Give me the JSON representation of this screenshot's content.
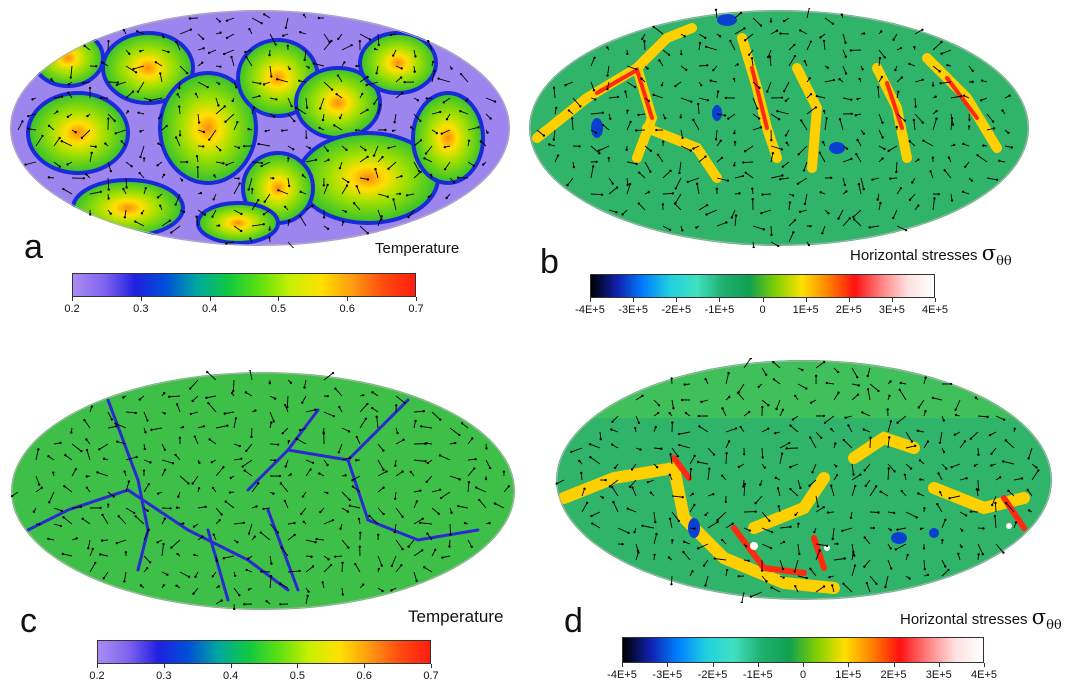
{
  "panels": [
    {
      "letter": "a",
      "quantity": "Temperature",
      "colorbar": {
        "colors": [
          "#a98cf2",
          "#8064f0",
          "#2020e0",
          "#0050d8",
          "#00a8a0",
          "#10c840",
          "#5ee010",
          "#c8f000",
          "#ffe000",
          "#ff9a10",
          "#ff4a10",
          "#ff1e10"
        ],
        "ticks": [
          "0.2",
          "0.3",
          "0.4",
          "0.5",
          "0.6",
          "0.7"
        ]
      }
    },
    {
      "letter": "b",
      "quantity": "Horizontal stresses",
      "symbol": "σ",
      "subscript": "θθ",
      "colorbar": {
        "colors": [
          "#000000",
          "#1020b0",
          "#0080ff",
          "#20d0e0",
          "#40e0c0",
          "#20b070",
          "#10a050",
          "#80d000",
          "#ffe000",
          "#ff8000",
          "#ff1010",
          "#ff8080",
          "#ffe0e0",
          "#ffffff"
        ],
        "ticks": [
          "-4E+5",
          "-3E+5",
          "-2E+5",
          "-1E+5",
          "0",
          "1E+5",
          "2E+5",
          "3E+5",
          "4E+5"
        ]
      }
    },
    {
      "letter": "c",
      "quantity": "Temperature",
      "colorbar": {
        "colors": [
          "#a98cf2",
          "#8064f0",
          "#2020e0",
          "#0050d8",
          "#00a8a0",
          "#10c840",
          "#5ee010",
          "#c8f000",
          "#ffe000",
          "#ff9a10",
          "#ff4a10",
          "#ff1e10"
        ],
        "ticks": [
          "0.2",
          "0.3",
          "0.4",
          "0.5",
          "0.6",
          "0.7"
        ]
      }
    },
    {
      "letter": "d",
      "quantity": "Horizontal stresses",
      "symbol": "σ",
      "subscript": "θθ",
      "colorbar": {
        "colors": [
          "#000000",
          "#1020b0",
          "#0080ff",
          "#20d0e0",
          "#40e0c0",
          "#20b070",
          "#10a050",
          "#80d000",
          "#ffe000",
          "#ff8000",
          "#ff1010",
          "#ff8080",
          "#ffe0e0",
          "#ffffff"
        ],
        "ticks": [
          "-4E+5",
          "-3E+5",
          "-2E+5",
          "-1E+5",
          "0",
          "1E+5",
          "2E+5",
          "3E+5",
          "4E+5"
        ]
      }
    }
  ]
}
